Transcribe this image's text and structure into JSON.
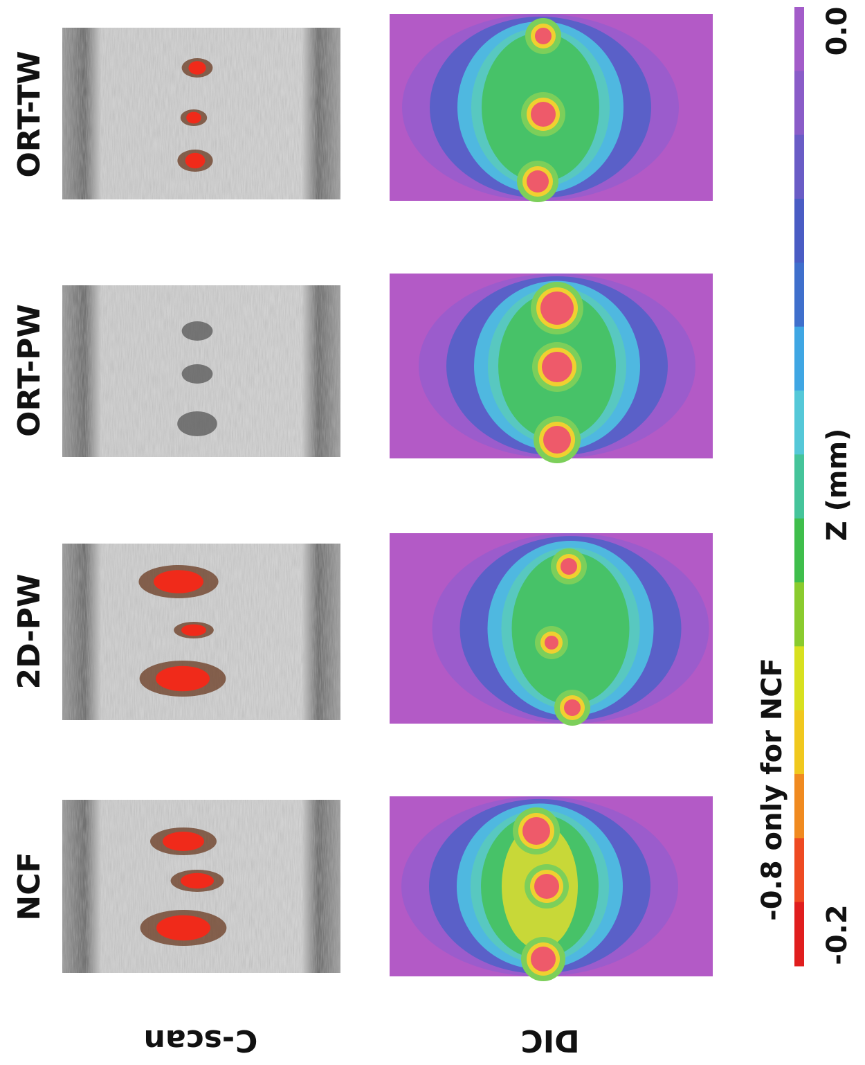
{
  "figure": {
    "rows": [
      {
        "label": "ORT-TW"
      },
      {
        "label": "ORT-PW"
      },
      {
        "label": "2D-PW"
      },
      {
        "label": "NCF"
      }
    ],
    "columns": [
      {
        "label": "C-scan"
      },
      {
        "label": "DIC"
      }
    ],
    "colorbar": {
      "label": "Z (mm)",
      "note": "-0.8 only for NCF",
      "lim": [
        -0.2,
        0
      ],
      "ticks": [
        {
          "value": 0,
          "label": "0.0"
        },
        {
          "value": -0.2,
          "label": "-0.2"
        }
      ],
      "colors": [
        "#a35cc9",
        "#8a5cc8",
        "#6a5cc6",
        "#4a5cc4",
        "#3f6fcc",
        "#3fa6e3",
        "#55c8d8",
        "#45c49a",
        "#3fbe4c",
        "#8acb2e",
        "#d8e020",
        "#f0c81e",
        "#f08a20",
        "#ee4a22",
        "#e01e1e"
      ]
    }
  }
}
